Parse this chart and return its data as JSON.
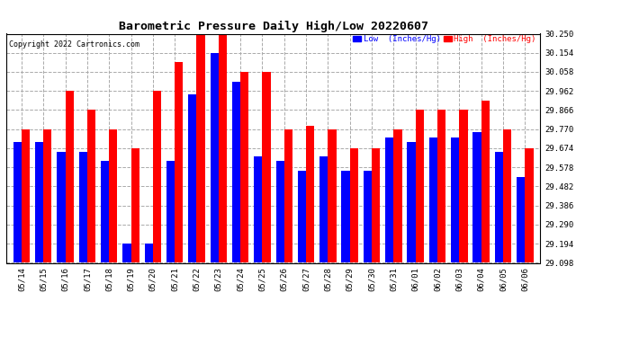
{
  "title": "Barometric Pressure Daily High/Low 20220607",
  "copyright": "Copyright 2022 Cartronics.com",
  "legend_low": "Low  (Inches/Hg)",
  "legend_high": "High  (Inches/Hg)",
  "background_color": "#ffffff",
  "plot_bg_color": "#ffffff",
  "grid_color": "#aaaaaa",
  "bar_color_low": "#0000ff",
  "bar_color_high": "#ff0000",
  "dates": [
    "05/14",
    "05/15",
    "05/16",
    "05/17",
    "05/18",
    "05/19",
    "05/20",
    "05/21",
    "05/22",
    "05/23",
    "05/24",
    "05/25",
    "05/26",
    "05/27",
    "05/28",
    "05/29",
    "05/30",
    "05/31",
    "06/01",
    "06/02",
    "06/03",
    "06/04",
    "06/05",
    "06/06"
  ],
  "high_values": [
    29.77,
    29.77,
    29.962,
    29.866,
    29.77,
    29.674,
    29.962,
    30.106,
    30.25,
    30.25,
    30.058,
    30.058,
    29.77,
    29.786,
    29.77,
    29.674,
    29.674,
    29.77,
    29.866,
    29.866,
    29.866,
    29.914,
    29.77,
    29.674
  ],
  "low_values": [
    29.706,
    29.706,
    29.658,
    29.658,
    29.61,
    29.194,
    29.194,
    29.61,
    29.946,
    30.154,
    30.01,
    29.634,
    29.61,
    29.562,
    29.634,
    29.562,
    29.562,
    29.73,
    29.706,
    29.73,
    29.73,
    29.754,
    29.658,
    29.53
  ],
  "ymin": 29.098,
  "ymax": 30.25,
  "yticks": [
    29.098,
    29.194,
    29.29,
    29.386,
    29.482,
    29.578,
    29.674,
    29.77,
    29.866,
    29.962,
    30.058,
    30.154,
    30.25
  ]
}
